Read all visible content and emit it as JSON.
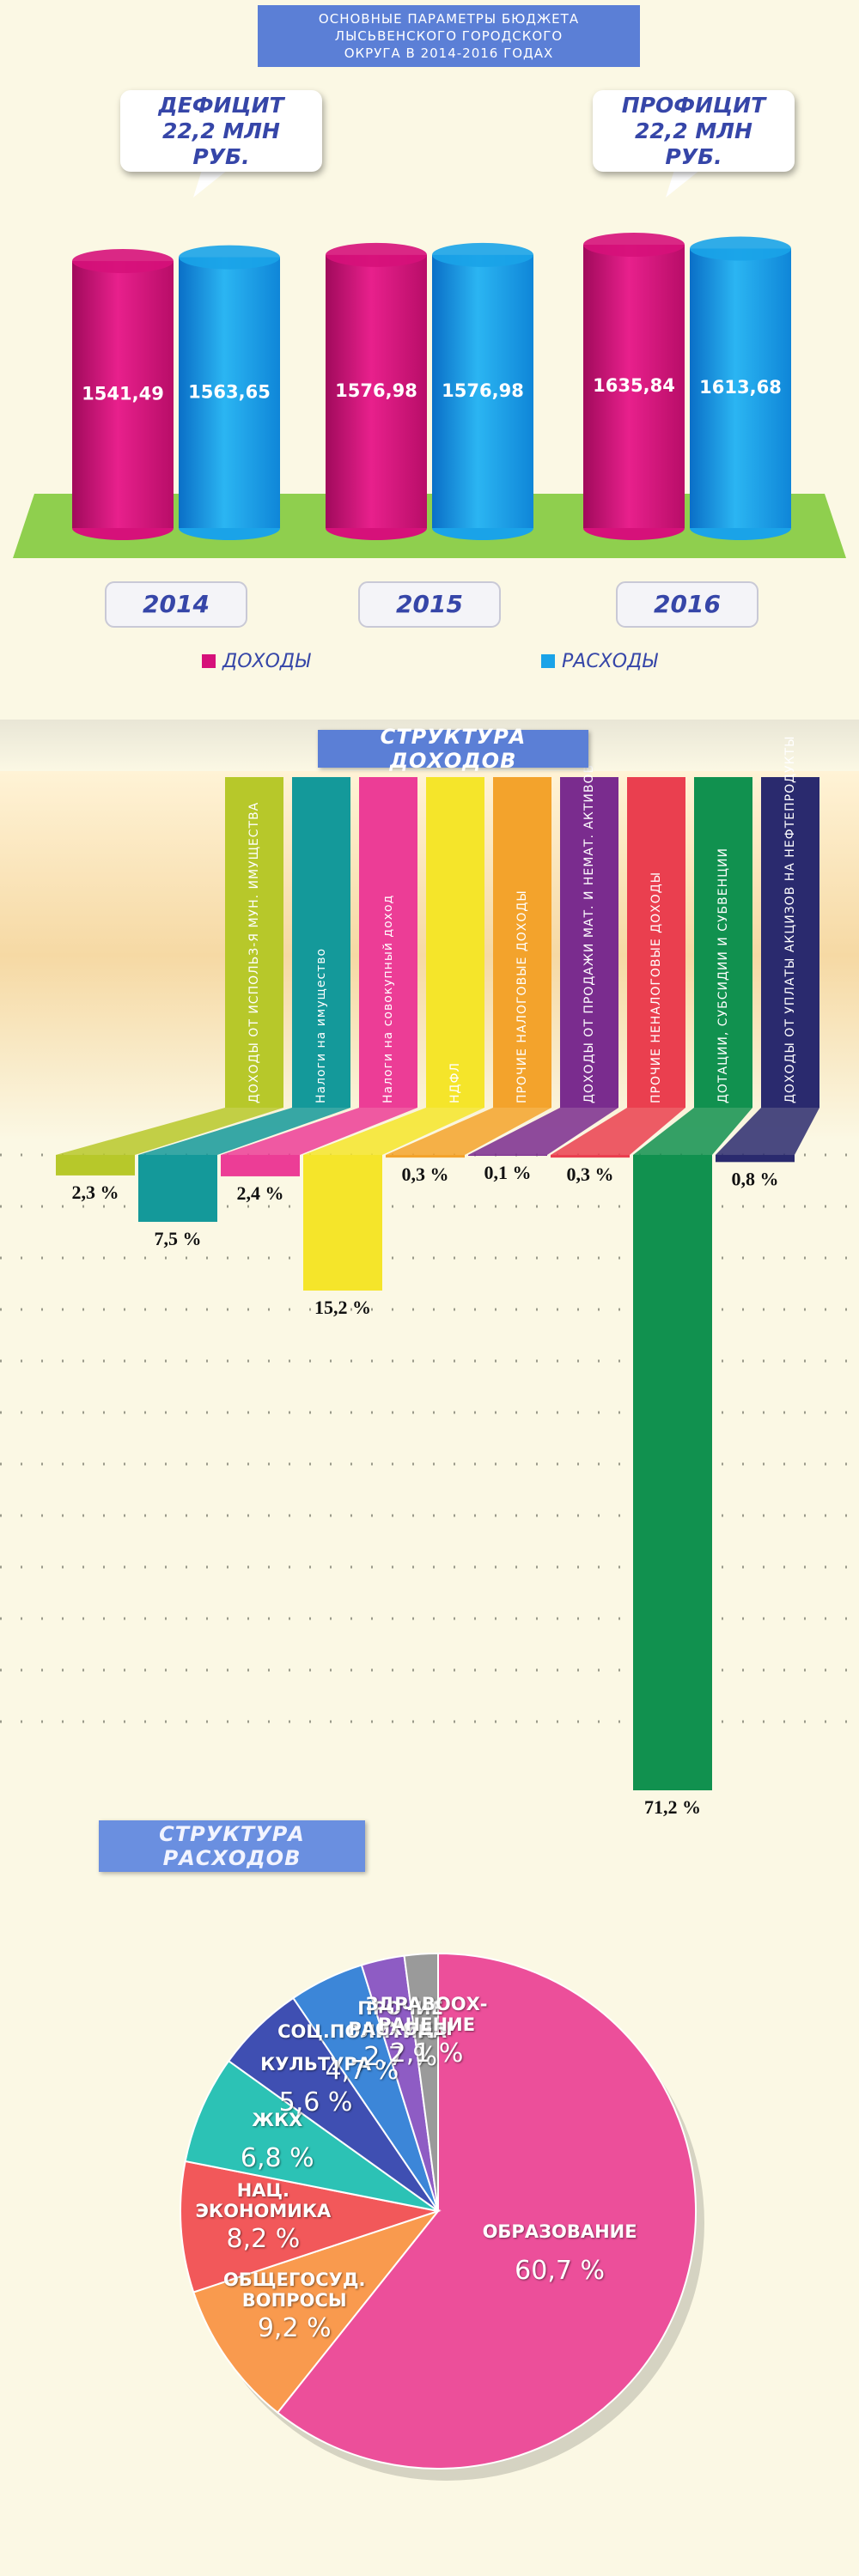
{
  "chart_data": [
    {
      "type": "bar",
      "title": "ОСНОВНЫЕ ПАРАМЕТРЫ БЮДЖЕТА ЛЫСЬВЕНСКОГО ГОРОДСКОГО ОКРУГА В 2014-2016 ГОДАХ",
      "annotations": [
        "ДЕФИЦИТ 22,2 МЛН РУБ.",
        "ПРОФИЦИТ 22,2 МЛН РУБ."
      ],
      "categories": [
        "2014",
        "2015",
        "2016"
      ],
      "series": [
        {
          "name": "ДОХОДЫ",
          "color": "#d6117a",
          "values": [
            1541.49,
            1576.98,
            1635.84
          ],
          "value_labels": [
            "1541,49",
            "1576,98",
            "1635,84"
          ]
        },
        {
          "name": "РАСХОДЫ",
          "color": "#1aa3e8",
          "values": [
            1563.65,
            1576.98,
            1613.68
          ],
          "value_labels": [
            "1563,65",
            "1576,98",
            "1613,68"
          ]
        }
      ]
    },
    {
      "type": "bar",
      "title": "СТРУКТУРА ДОХОДОВ",
      "categories": [
        "ДОХОДЫ ОТ ИСПОЛЬЗ-Я МУН. ИМУЩЕСТВА",
        "Налоги на имущество",
        "Налоги на совокупный доход",
        "НДФЛ",
        "ПРОЧИЕ НАЛОГОВЫЕ ДОХОДЫ",
        "ДОХОДЫ ОТ ПРОДАЖИ МАТ. И НЕМАТ. АКТИВОВ",
        "ПРОЧИЕ НЕНАЛОГОВЫЕ ДОХОДЫ",
        "ДОТАЦИИ, СУБСИДИИ И СУБВЕНЦИИ",
        "ДОХОДЫ ОТ УПЛАТЫ АКЦИЗОВ НА НЕФТЕПРОДУКТЫ"
      ],
      "values": [
        2.3,
        7.5,
        2.4,
        15.2,
        0.3,
        0.1,
        0.3,
        71.2,
        0.8
      ],
      "value_labels": [
        "2,3 %",
        "7,5 %",
        "2,4 %",
        "15,2 %",
        "0,3 %",
        "0,1 %",
        "0,3 %",
        "71,2 %",
        "0,8 %"
      ],
      "colors": [
        "#b7c82a",
        "#14999a",
        "#ec3d96",
        "#f5e52a",
        "#f3a32c",
        "#7a2c8e",
        "#ea3f4f",
        "#11914f",
        "#2a2a6e"
      ]
    },
    {
      "type": "pie",
      "title": "СТРУКТУРА РАСХОДОВ",
      "categories": [
        "ОБРАЗОВАНИЕ",
        "ОБЩЕГОСУД. ВОПРОСЫ",
        "НАЦ. ЭКОНОМИКА",
        "ЖКХ",
        "КУЛЬТУРА",
        "СОЦ.ПОЛИТИКА",
        "ПРОЧИЕ РАСХОДЫ",
        "ЗДРАВООХ-РАНЕНИЕ"
      ],
      "values": [
        60.7,
        9.2,
        8.2,
        6.8,
        5.6,
        4.7,
        2.7,
        2.1
      ],
      "value_labels": [
        "60,7 %",
        "9,2 %",
        "8,2 %",
        "6,8 %",
        "5,6 %",
        "4,7 %",
        "2,7 %",
        "2,1 %"
      ],
      "colors": [
        "#ec4f9a",
        "#f99a4e",
        "#f2585a",
        "#2cc2b5",
        "#3f4fb2",
        "#3c86d8",
        "#8e5cc4",
        "#9a9a9a"
      ]
    }
  ]
}
